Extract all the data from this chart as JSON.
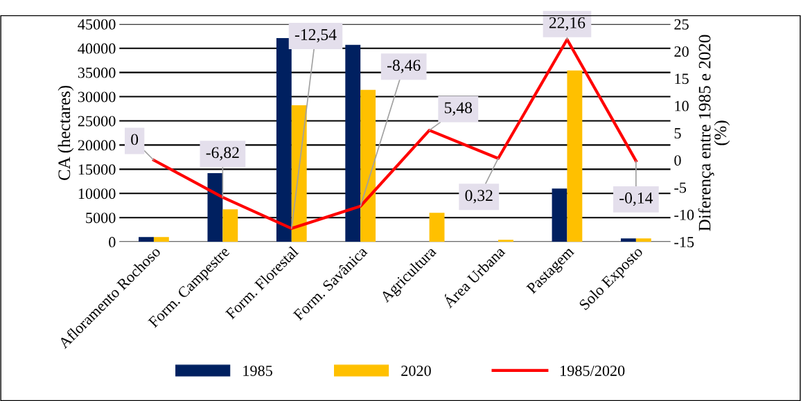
{
  "chart_data": {
    "type": "bar",
    "categories": [
      "Afloramento Rochoso",
      "Form. Campestre",
      "Form. Florestal",
      "Form. Savânica",
      "Agricultura",
      "Área Urbana",
      "Pastagem",
      "Solo Exposto"
    ],
    "ylabel": "CA (hectares)",
    "y2label": "Diferença entre 1985 e 2020\n(%)",
    "ylim": [
      0,
      45000
    ],
    "yticks": [
      0,
      5000,
      10000,
      15000,
      20000,
      25000,
      30000,
      35000,
      40000,
      45000
    ],
    "y2lim": [
      -15,
      25
    ],
    "y2ticks": [
      -15,
      -10,
      -5,
      0,
      5,
      10,
      15,
      20,
      25
    ],
    "grid": "y",
    "legend": "bottom",
    "series": [
      {
        "name": "1985",
        "color": "#002060",
        "values": [
          1000,
          14200,
          42100,
          40700,
          0,
          0,
          11000,
          700
        ]
      },
      {
        "name": "2020",
        "color": "#ffc000",
        "values": [
          1000,
          6700,
          28200,
          31400,
          6000,
          400,
          35400,
          700
        ]
      },
      {
        "name": "1985/2020",
        "type": "line",
        "axis": "y2",
        "color": "#ff0000",
        "marker": "none",
        "data_labels": true,
        "value_labels": [
          "0",
          "-6,82",
          "-12,54",
          "-8,46",
          "5,48",
          "0,32",
          "22,16",
          "-0,14"
        ],
        "values": [
          0,
          -6.82,
          -12.54,
          -8.46,
          5.48,
          0.32,
          22.16,
          -0.14
        ]
      }
    ]
  }
}
